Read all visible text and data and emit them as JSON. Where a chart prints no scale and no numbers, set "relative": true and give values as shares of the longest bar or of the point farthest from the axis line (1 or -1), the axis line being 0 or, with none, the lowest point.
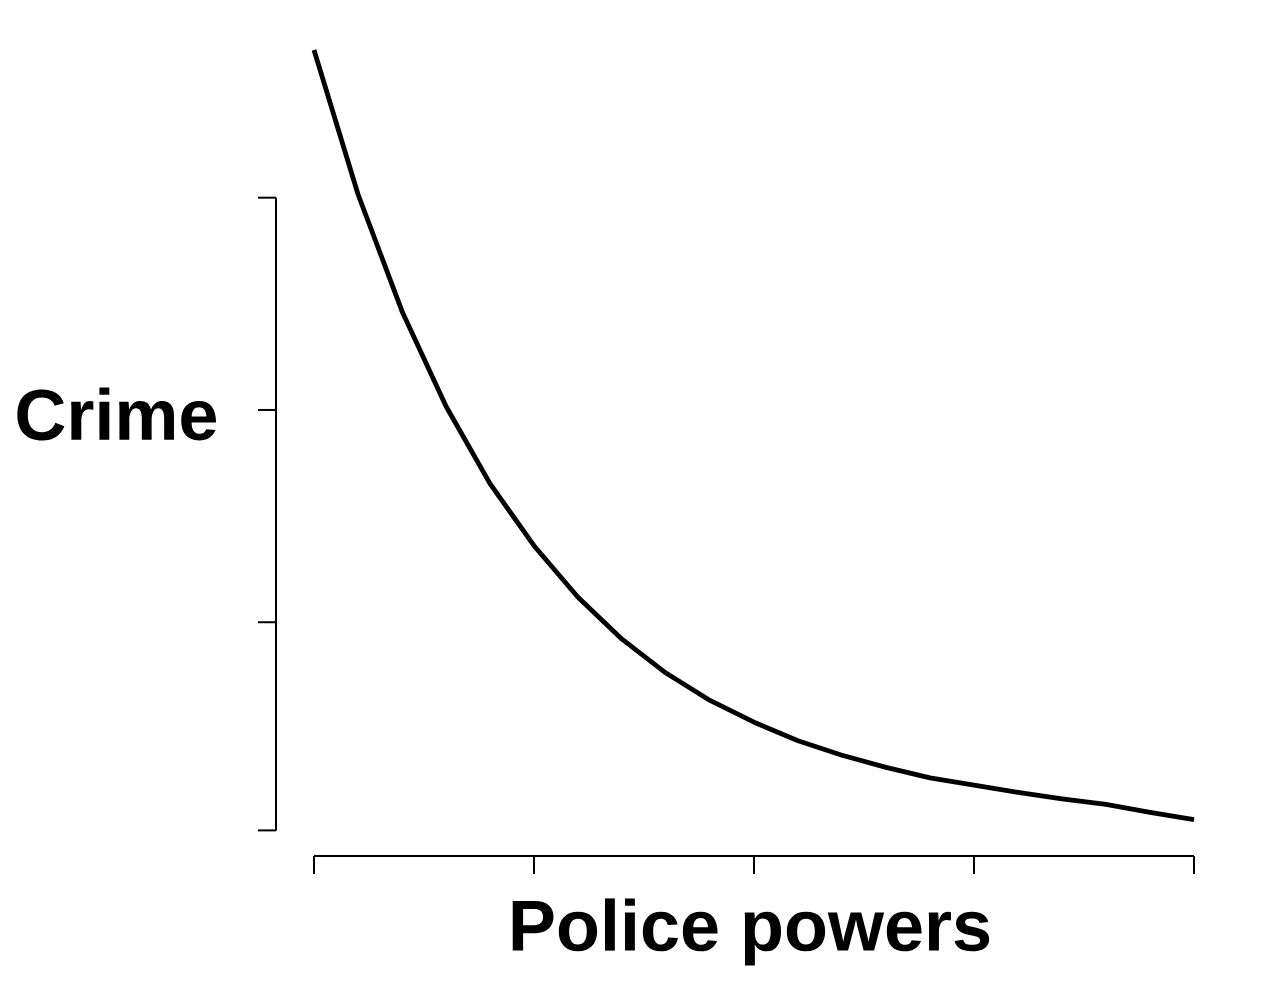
{
  "chart_data": {
    "type": "line",
    "relative": true,
    "xlabel": "Police powers",
    "ylabel": "Crime",
    "categories": [
      null,
      null,
      null,
      null,
      null,
      null,
      null,
      null,
      null,
      null,
      null,
      null,
      null,
      null,
      null,
      null,
      null,
      null,
      null,
      null,
      null
    ],
    "series": [
      {
        "color": "#000000",
        "values": [
          1,
          0.821,
          0.676,
          0.558,
          0.462,
          0.385,
          0.321,
          0.269,
          0.227,
          0.193,
          0.166,
          0.143,
          0.125,
          0.11,
          0.097,
          0.088,
          0.079,
          0.071,
          0.064,
          0.054,
          0.045
        ]
      }
    ]
  }
}
